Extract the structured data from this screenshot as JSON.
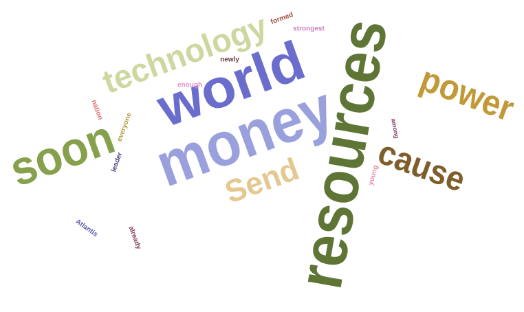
{
  "words": [
    {
      "text": "resources",
      "color": "#5f7536"
    },
    {
      "text": "money",
      "color": "#9aa0dc"
    },
    {
      "text": "world",
      "color": "#6a6dcc"
    },
    {
      "text": "soon",
      "color": "#86a04c"
    },
    {
      "text": "technology",
      "color": "#ccd8a0"
    },
    {
      "text": "power",
      "color": "#c09a38"
    },
    {
      "text": "cause",
      "color": "#7f5e2c"
    },
    {
      "text": "Send",
      "color": "#e4c890"
    },
    {
      "text": "formed",
      "color": "#a04a3a"
    },
    {
      "text": "strongest",
      "color": "#cc7fc0"
    },
    {
      "text": "newly",
      "color": "#6a4040"
    },
    {
      "text": "enough",
      "color": "#e090c8"
    },
    {
      "text": "nation",
      "color": "#e07070"
    },
    {
      "text": "everyone",
      "color": "#b49a40"
    },
    {
      "text": "leader",
      "color": "#4a4a80"
    },
    {
      "text": "among",
      "color": "#8a3a6a"
    },
    {
      "text": "young",
      "color": "#e48aa0"
    },
    {
      "text": "Atlantis",
      "color": "#5a5ab0"
    },
    {
      "text": "already",
      "color": "#8a3a5a"
    }
  ]
}
